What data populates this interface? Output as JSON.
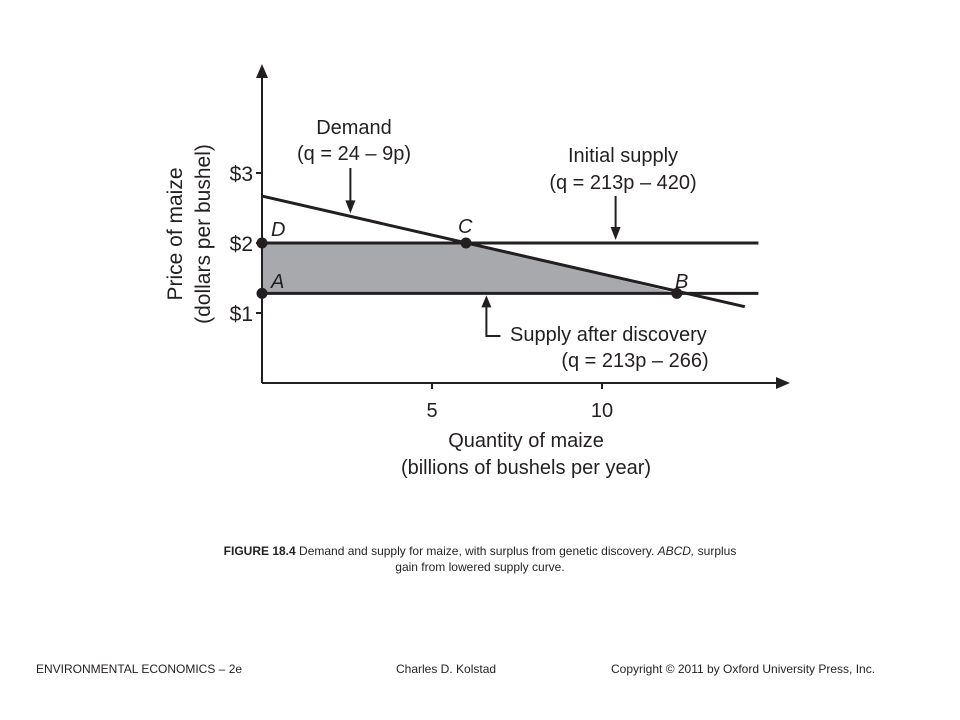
{
  "chart_data": {
    "type": "line",
    "ylabel": [
      "Price of maize",
      "(dollars per bushel)"
    ],
    "xlabel": [
      "Quantity of maize",
      "(billions of bushels per year)"
    ],
    "xlim": [
      0,
      15
    ],
    "ylim": [
      0,
      3.5
    ],
    "x_ticks": [
      {
        "value": 5,
        "label": "5"
      },
      {
        "value": 10,
        "label": "10"
      }
    ],
    "y_ticks": [
      {
        "value": 1,
        "label": "$1"
      },
      {
        "value": 2,
        "label": "$2"
      },
      {
        "value": 3,
        "label": "$3"
      }
    ],
    "series": [
      {
        "label": [
          "Demand",
          "(q = 24 – 9p)"
        ],
        "x": [
          0,
          14.2
        ],
        "y": [
          2.67,
          1.09
        ],
        "arrow_x": 2.6
      },
      {
        "label": [
          "Initial supply",
          "(q = 213p – 420)"
        ],
        "x": [
          0,
          14.6
        ],
        "y": [
          2.0,
          2.0
        ],
        "arrow_x": 10.4
      },
      {
        "label": [
          "Supply after discovery",
          "(q = 213p – 266)"
        ],
        "x": [
          0,
          14.6
        ],
        "y": [
          1.28,
          1.28
        ],
        "arrow_x": 6.6
      }
    ],
    "points": [
      {
        "name": "D",
        "x": 0,
        "y": 2.0
      },
      {
        "name": "C",
        "x": 6.0,
        "y": 2.0
      },
      {
        "name": "A",
        "x": 0,
        "y": 1.28
      },
      {
        "name": "B",
        "x": 12.2,
        "y": 1.28
      }
    ],
    "shaded_region": {
      "name": "ABCD",
      "color": "#a7a9ac"
    }
  },
  "caption": {
    "figure_label": "FIGURE 18.4",
    "text_1": " Demand and supply for maize, with surplus from genetic discovery. ",
    "italic": "ABCD,",
    "text_2": " surplus gain from lowered supply curve."
  },
  "footer": {
    "left": "ENVIRONMENTAL  ECONOMICS  – 2e",
    "center": "Charles  D. Kolstad",
    "right": "Copyright © 2011 by Oxford University Press, Inc."
  }
}
